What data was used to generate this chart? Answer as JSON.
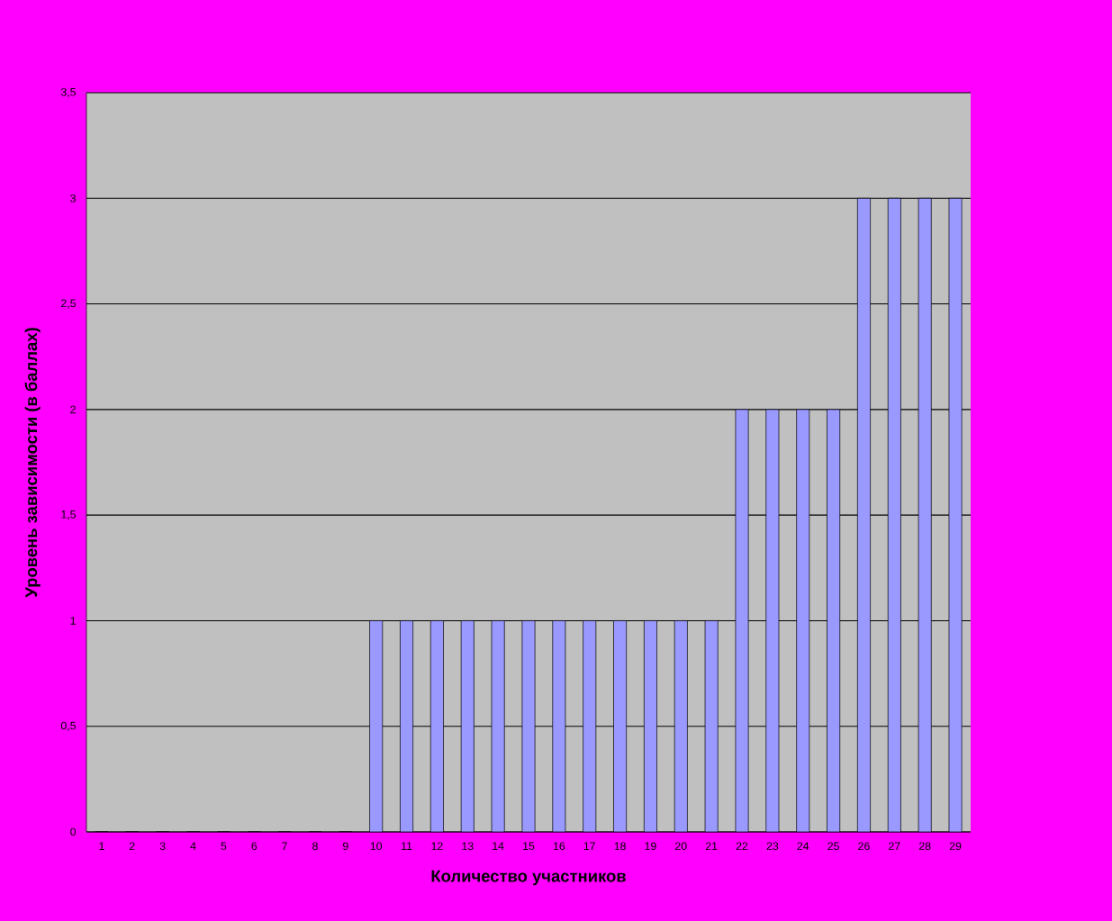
{
  "chart_data": {
    "type": "bar",
    "xlabel": "Количество участников",
    "ylabel": "Уровень зависимости (в баллах)",
    "categories": [
      "1",
      "2",
      "3",
      "4",
      "5",
      "6",
      "7",
      "8",
      "9",
      "10",
      "11",
      "12",
      "13",
      "14",
      "15",
      "16",
      "17",
      "18",
      "19",
      "20",
      "21",
      "22",
      "23",
      "24",
      "25",
      "26",
      "27",
      "28",
      "29"
    ],
    "values": [
      0,
      0,
      0,
      0,
      0,
      0,
      0,
      0,
      0,
      1,
      1,
      1,
      1,
      1,
      1,
      1,
      1,
      1,
      1,
      1,
      1,
      2,
      2,
      2,
      2,
      3,
      3,
      3,
      3
    ],
    "color": "#9999ff",
    "ylim": [
      0,
      3.5
    ],
    "yticks": [
      0,
      {
        "value": 0.5,
        "label": "0,5"
      },
      1,
      {
        "value": 1.5,
        "label": "1,5"
      },
      2,
      {
        "value": 2.5,
        "label": "2,5"
      },
      3,
      {
        "value": 3.5,
        "label": "3,5"
      }
    ],
    "grid": "y"
  }
}
